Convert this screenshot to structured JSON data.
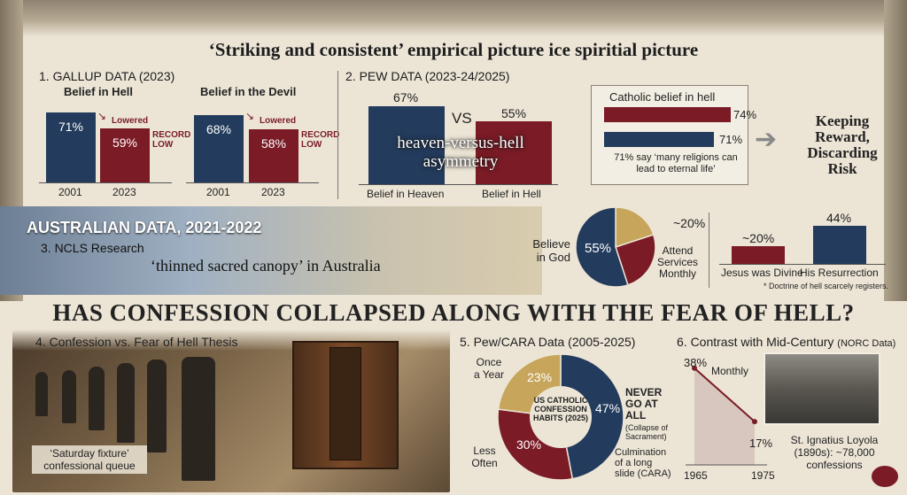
{
  "title": "‘Striking and consistent’ empirical picture ice spiritial picture",
  "gallup": {
    "heading": "1. GALLUP DATA (2023)",
    "hell": {
      "title": "Belief in Hell",
      "bars": [
        {
          "year": "2001",
          "value": 71,
          "label": "71%"
        },
        {
          "year": "2023",
          "value": 59,
          "label": "59%"
        }
      ],
      "arrow_note": "Lowered",
      "record": "RECORD LOW"
    },
    "devil": {
      "title": "Belief in the Devil",
      "bars": [
        {
          "year": "2001",
          "value": 68,
          "label": "68%"
        },
        {
          "year": "2023",
          "value": 58,
          "label": "58%"
        }
      ],
      "arrow_note": "Lowered",
      "record": "RECORD LOW"
    }
  },
  "pew": {
    "heading": "2. PEW DATA (2023-24/2025)",
    "heaven_label": "Belief in Heaven",
    "heaven_value": "67%",
    "hell_label": "Belief in Hell",
    "hell_value": "55%",
    "vs": "VS",
    "overlay": "heaven-versus-hell asymmetry",
    "catholic": {
      "title": "Catholic belief in hell",
      "bars": [
        {
          "value": 74,
          "label": "74%"
        },
        {
          "value": 71,
          "label": "71%"
        }
      ],
      "note": "71% say ‘many religions can lead to eternal life’"
    },
    "keeping": "Keeping Reward, Discarding Risk"
  },
  "australia": {
    "heading": "AUSTRALIAN DATA, 2021-2022",
    "sub": "3. NCLS Research",
    "quote": "‘thinned sacred canopy’ in Australia",
    "pie_center": "55%",
    "believe": "Believe in God",
    "approx20": "~20%",
    "attend": "Attend Services Monthly",
    "divine_value": "~20%",
    "divine_label": "Jesus was Divine",
    "resurrection_value": "44%",
    "resurrection_label": "His Resurrection",
    "footnote": "* Doctrine of hell scarcely registers."
  },
  "headline": "HAS CONFESSION COLLAPSED ALONG WITH THE FEAR OF HELL?",
  "confession": {
    "heading": "4. Confession vs. Fear of Hell Thesis",
    "caption": "‘Saturday fixture’ confessional queue"
  },
  "cara": {
    "heading": "5. Pew/CARA Data (2005-2025)",
    "center": "US CATHOLIC CONFESSION HABITS (2025)",
    "once": "Once a Year",
    "once_value": "23%",
    "less": "Less Often",
    "less_value": "30%",
    "never_value": "47%",
    "never": "NEVER GO AT ALL",
    "never_note": "(Collapse of Sacrament)",
    "culmination": "Culmination of a long slide (CARA)"
  },
  "norc": {
    "heading": "6. Contrast with Mid-Century",
    "heading_note": "(NORC Data)",
    "start_value": "38%",
    "start_label": "Monthly",
    "end_value": "17%",
    "x_start": "1965",
    "x_end": "1975",
    "loyola": "St. Ignatius Loyola (1890s): ~78,000 confessions"
  },
  "chart_data": [
    {
      "type": "bar",
      "title": "Belief in Hell",
      "categories": [
        "2001",
        "2023"
      ],
      "values": [
        71,
        59
      ],
      "ylabel": "",
      "xlabel": ""
    },
    {
      "type": "bar",
      "title": "Belief in the Devil",
      "categories": [
        "2001",
        "2023"
      ],
      "values": [
        68,
        58
      ]
    },
    {
      "type": "bar",
      "title": "",
      "categories": [
        "Belief in Heaven",
        "Belief in Hell"
      ],
      "values": [
        67,
        55
      ]
    },
    {
      "type": "bar",
      "title": "Catholic belief in hell",
      "values": [
        74,
        71
      ]
    },
    {
      "type": "pie",
      "title": "",
      "slices": [
        {
          "label": "Believe in God",
          "value": 55
        },
        {
          "label": "~20%",
          "value": 20
        },
        {
          "label": "Attend Services Monthly",
          "value": 25
        }
      ]
    },
    {
      "type": "bar",
      "categories": [
        "Jesus was Divine",
        "His Resurrection"
      ],
      "values": [
        20,
        44
      ]
    },
    {
      "type": "pie",
      "title": "US CATHOLIC CONFESSION HABITS (2025)",
      "slices": [
        {
          "label": "NEVER GO AT ALL",
          "value": 47
        },
        {
          "label": "Less Often",
          "value": 30
        },
        {
          "label": "Once a Year",
          "value": 23
        }
      ]
    },
    {
      "type": "line",
      "x": [
        "1965",
        "1975"
      ],
      "y": [
        38,
        17
      ],
      "series": [
        {
          "name": "Monthly",
          "values": [
            38,
            17
          ]
        }
      ]
    }
  ],
  "colors": {
    "navy": "#233b5c",
    "maroon": "#7a1b25",
    "gold": "#c7a55a"
  }
}
